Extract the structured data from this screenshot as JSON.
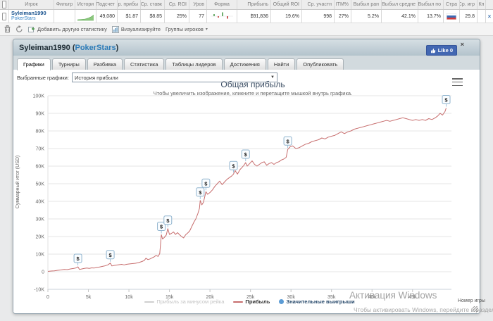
{
  "stats_table": {
    "headers": [
      "Игрок",
      "Фильтр",
      "Истори",
      "Подсчет",
      "Ср. прибы",
      "Ср. ставк",
      "Ср. ROI",
      "Уров",
      "Форма",
      "Прибыль",
      "Общий ROI",
      "Ср. участн",
      "ITM%",
      "Выбыл ран",
      "Выбыл средне",
      "Выбыл по",
      "Стра",
      "Ср. игр",
      "Кп"
    ],
    "row": {
      "player": "Syleiman1990",
      "site": "PokerStars",
      "count": "49,080",
      "avg_profit": "$1.87",
      "avg_stake": "$8.85",
      "avg_roi": "25%",
      "level": "77",
      "profit": "$91,836",
      "total_roi": "19.6%",
      "avg_entrants": "998",
      "itm": "27%",
      "out_early": "5.2%",
      "out_middle": "42.1%",
      "out_late": "13.7%",
      "avg_games": "29.8",
      "close_label": "×"
    }
  },
  "toolbar": {
    "add_stat": "Добавить другую статистику",
    "visualize": "Визуализируйте",
    "player_groups": "Группы игроков",
    "caret": "▾"
  },
  "panel": {
    "title_prefix": "Syleiman1990 (",
    "title_site": "PokerStars",
    "title_suffix": ")",
    "like_label": "Like 0",
    "close_label": "×",
    "tabs": [
      "Графики",
      "Турниры",
      "Разбивка",
      "Статистика",
      "Таблицы лидеров",
      "Достижения",
      "Найти",
      "Опубликовать"
    ],
    "active_tab": "Графики",
    "selected_graphs_label": "Выбранные графики:",
    "selected_graph_value": "История прибыли",
    "select_caret": "▼"
  },
  "chart_data": {
    "type": "line",
    "title": "Общая прибыль",
    "subtitle": "Чтобы увеличить изображение, кликните и перетащите мышкой внутрь графика.",
    "xlabel": "Номер игры",
    "ylabel": "Суммарный итог (USD)",
    "xlim": [
      0,
      49.8
    ],
    "ylim": [
      -10,
      100
    ],
    "grid": "horizontal",
    "legend_position": "bottom",
    "x_unit": "thousands of games",
    "y_unit": "thousands of USD",
    "x_ticks": [
      {
        "v": 0,
        "label": "0"
      },
      {
        "v": 5,
        "label": "5k"
      },
      {
        "v": 10,
        "label": "10k"
      },
      {
        "v": 15,
        "label": "15k"
      },
      {
        "v": 20,
        "label": "20k"
      },
      {
        "v": 25,
        "label": "25k"
      },
      {
        "v": 30,
        "label": "30k"
      },
      {
        "v": 35,
        "label": "35k"
      },
      {
        "v": 40,
        "label": "40k"
      },
      {
        "v": 45,
        "label": "45k"
      }
    ],
    "y_ticks": [
      {
        "v": -10,
        "label": "-10K"
      },
      {
        "v": 0,
        "label": "0"
      },
      {
        "v": 10,
        "label": "10K"
      },
      {
        "v": 20,
        "label": "20K"
      },
      {
        "v": 30,
        "label": "30K"
      },
      {
        "v": 40,
        "label": "40K"
      },
      {
        "v": 50,
        "label": "50K"
      },
      {
        "v": 60,
        "label": "60K"
      },
      {
        "v": 70,
        "label": "70K"
      },
      {
        "v": 80,
        "label": "80K"
      },
      {
        "v": 90,
        "label": "90K"
      },
      {
        "v": 100,
        "label": "100K"
      }
    ],
    "series": [
      {
        "name": "Прибыль за минусом рейка",
        "type": "line",
        "color": "#cfcfcf",
        "visible": false,
        "points": []
      },
      {
        "name": "Прибыль",
        "type": "line",
        "color": "#c76d6d",
        "visible": true,
        "points": [
          [
            0,
            0.2
          ],
          [
            0.4,
            0.4
          ],
          [
            0.8,
            0.5
          ],
          [
            1.2,
            0.8
          ],
          [
            1.6,
            1.0
          ],
          [
            2,
            1.3
          ],
          [
            2.4,
            1.2
          ],
          [
            2.8,
            1.6
          ],
          [
            3.2,
            1.9
          ],
          [
            3.5,
            2.2
          ],
          [
            3.7,
            2.8
          ],
          [
            3.9,
            1.3
          ],
          [
            4.2,
            1.6
          ],
          [
            4.5,
            1.9
          ],
          [
            4.8,
            2.1
          ],
          [
            5.1,
            1.9
          ],
          [
            5.4,
            2.2
          ],
          [
            5.7,
            2.1
          ],
          [
            6,
            2.4
          ],
          [
            6.3,
            2.6
          ],
          [
            6.6,
            2.9
          ],
          [
            7,
            3.3
          ],
          [
            7.4,
            3.9
          ],
          [
            7.7,
            4.9
          ],
          [
            7.9,
            3.3
          ],
          [
            8.2,
            3.6
          ],
          [
            8.5,
            3.8
          ],
          [
            8.8,
            4.0
          ],
          [
            9.1,
            4.2
          ],
          [
            9.4,
            3.9
          ],
          [
            9.7,
            4.2
          ],
          [
            10,
            4.4
          ],
          [
            10.4,
            4.6
          ],
          [
            10.8,
            4.8
          ],
          [
            11.2,
            5.2
          ],
          [
            11.6,
            5.8
          ],
          [
            11.9,
            6.4
          ],
          [
            12.1,
            7.7
          ],
          [
            12.35,
            6.9
          ],
          [
            12.6,
            7.3
          ],
          [
            12.85,
            7.9
          ],
          [
            13.1,
            8.4
          ],
          [
            13.35,
            9.3
          ],
          [
            13.6,
            8.7
          ],
          [
            13.8,
            10.3
          ],
          [
            14,
            21
          ],
          [
            14.15,
            18.6
          ],
          [
            14.35,
            19.4
          ],
          [
            14.6,
            20.8
          ],
          [
            14.8,
            24.5
          ],
          [
            15,
            21.2
          ],
          [
            15.25,
            21.8
          ],
          [
            15.5,
            22.6
          ],
          [
            15.75,
            21.2
          ],
          [
            16,
            22.2
          ],
          [
            16.25,
            21
          ],
          [
            16.5,
            20
          ],
          [
            16.75,
            19.2
          ],
          [
            17,
            21
          ],
          [
            17.25,
            22
          ],
          [
            17.5,
            23.2
          ],
          [
            17.75,
            25.6
          ],
          [
            18,
            28
          ],
          [
            18.25,
            30
          ],
          [
            18.5,
            33
          ],
          [
            18.7,
            36
          ],
          [
            18.8,
            40.5
          ],
          [
            19,
            38
          ],
          [
            19.2,
            39.5
          ],
          [
            19.5,
            45.5
          ],
          [
            19.7,
            44
          ],
          [
            20,
            45
          ],
          [
            20.3,
            46.5
          ],
          [
            20.6,
            48.5
          ],
          [
            20.9,
            50
          ],
          [
            21.2,
            51.5
          ],
          [
            21.5,
            49.5
          ],
          [
            21.8,
            51
          ],
          [
            22.1,
            52.5
          ],
          [
            22.4,
            53.5
          ],
          [
            22.7,
            54.5
          ],
          [
            22.9,
            55.5
          ],
          [
            23.1,
            57.5
          ],
          [
            23.4,
            55.5
          ],
          [
            23.7,
            58
          ],
          [
            24,
            59.5
          ],
          [
            24.2,
            60.5
          ],
          [
            24.4,
            62
          ],
          [
            24.6,
            60
          ],
          [
            24.9,
            61.5
          ],
          [
            25.2,
            63
          ],
          [
            25.5,
            61
          ],
          [
            25.8,
            60
          ],
          [
            26.1,
            61
          ],
          [
            26.4,
            62
          ],
          [
            26.7,
            62.5
          ],
          [
            27,
            60.5
          ],
          [
            27.3,
            61.5
          ],
          [
            27.6,
            62
          ],
          [
            27.9,
            61
          ],
          [
            28.2,
            62
          ],
          [
            28.5,
            62.5
          ],
          [
            28.8,
            63.5
          ],
          [
            29.1,
            64
          ],
          [
            29.4,
            65
          ],
          [
            29.6,
            69.5
          ],
          [
            29.9,
            71
          ],
          [
            30.2,
            71.5
          ],
          [
            30.6,
            70
          ],
          [
            31,
            70.5
          ],
          [
            31.4,
            71.5
          ],
          [
            31.8,
            72.5
          ],
          [
            32.2,
            73
          ],
          [
            32.6,
            74
          ],
          [
            33,
            74.5
          ],
          [
            33.4,
            75
          ],
          [
            33.8,
            76
          ],
          [
            34.2,
            75.5
          ],
          [
            34.6,
            76.5
          ],
          [
            35,
            77
          ],
          [
            35.4,
            77.5
          ],
          [
            35.8,
            78.5
          ],
          [
            36.2,
            79.5
          ],
          [
            36.6,
            78.5
          ],
          [
            37,
            79.5
          ],
          [
            37.4,
            80
          ],
          [
            37.8,
            81
          ],
          [
            38.2,
            81.5
          ],
          [
            38.6,
            82
          ],
          [
            39,
            82.5
          ],
          [
            39.4,
            83
          ],
          [
            39.8,
            83.5
          ],
          [
            40.2,
            84
          ],
          [
            40.6,
            84.5
          ],
          [
            41,
            85
          ],
          [
            41.4,
            85.5
          ],
          [
            41.8,
            86
          ],
          [
            42.2,
            85.5
          ],
          [
            42.6,
            86
          ],
          [
            43,
            86.5
          ],
          [
            43.4,
            87
          ],
          [
            43.8,
            87.5
          ],
          [
            44.2,
            87
          ],
          [
            44.6,
            86.5
          ],
          [
            45,
            86
          ],
          [
            45.4,
            86.5
          ],
          [
            45.8,
            86
          ],
          [
            46.2,
            86.5
          ],
          [
            46.6,
            86
          ],
          [
            47,
            87
          ],
          [
            47.4,
            86.5
          ],
          [
            47.8,
            87.5
          ],
          [
            48.1,
            88.5
          ],
          [
            48.4,
            90
          ],
          [
            48.7,
            89
          ],
          [
            49,
            91
          ],
          [
            49.15,
            93
          ]
        ]
      },
      {
        "name": "Значительные выигрыши",
        "type": "marker",
        "color": "#5b9bd5",
        "marker_glyph": "$",
        "visible": true,
        "points": [
          [
            3.7,
            2.8
          ],
          [
            7.7,
            4.9
          ],
          [
            14,
            21
          ],
          [
            14.8,
            24.5
          ],
          [
            18.8,
            40.5
          ],
          [
            19.5,
            45.5
          ],
          [
            22.9,
            55.5
          ],
          [
            24.4,
            62
          ],
          [
            29.6,
            69.5
          ],
          [
            49.15,
            93
          ]
        ]
      }
    ]
  },
  "watermark": {
    "line1": "Активация Windows",
    "line2": "Чтобы активировать Windows, перейдите в раздел"
  }
}
